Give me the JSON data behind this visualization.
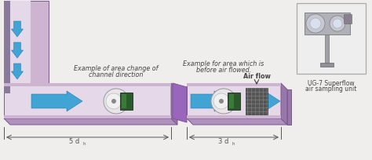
{
  "bg_color": "#f0eded",
  "duct_fill": "#cdb4d0",
  "duct_stroke": "#7a5a8a",
  "duct_light": "#e5d8e8",
  "duct_bottom": "#b090bc",
  "duct_side": "#9977aa",
  "arrow_color": "#42a4d4",
  "arrow_edge": "#2080b0",
  "sensor_bg": "#e8e4e8",
  "sensor_green": "#2a5a2a",
  "sensor_white": "#f0f0f0",
  "text_color": "#444444",
  "dim_color": "#555555",
  "title_text1": "Example of area change of",
  "title_text2": "channel direction",
  "title_text3": "Example for area which is",
  "title_text4": "before air flowed.",
  "airflow_label": "Air flow",
  "product_label1": "UG-7 Superflow",
  "product_label2": "air sampling unit",
  "box_color": "#eeeeee",
  "box_stroke": "#aaaaaa",
  "connector_fill": "#8a7a9a",
  "gap_fill": "#9966bb"
}
